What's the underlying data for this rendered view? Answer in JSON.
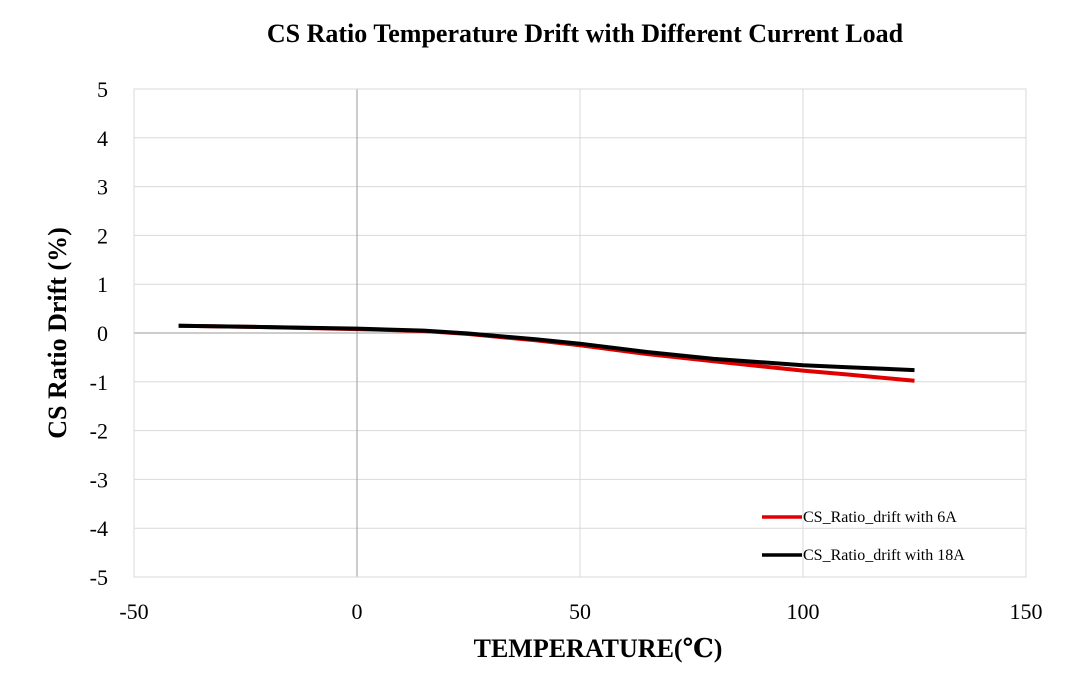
{
  "chart_data": {
    "type": "line",
    "title": "CS Ratio Temperature Drift with Different Current Load",
    "xlabel": "TEMPERATURE(℃)",
    "ylabel": "CS Ratio Drift (%)",
    "xlim": [
      -50,
      150
    ],
    "ylim": [
      -5,
      5
    ],
    "xticks": [
      -50,
      0,
      50,
      100,
      150
    ],
    "yticks": [
      -5,
      -4,
      -3,
      -2,
      -1,
      0,
      1,
      2,
      3,
      4,
      5
    ],
    "grid": true,
    "legend_position": "bottom-right",
    "series": [
      {
        "name": "CS_Ratio_drift with 6A",
        "color": "#e00000",
        "x": [
          -40,
          -25,
          0,
          15,
          25,
          40,
          50,
          65,
          80,
          100,
          110,
          125
        ],
        "y": [
          0.15,
          0.13,
          0.08,
          0.04,
          -0.02,
          -0.15,
          -0.25,
          -0.43,
          -0.58,
          -0.77,
          -0.85,
          -0.98
        ]
      },
      {
        "name": "CS_Ratio_drift with 18A",
        "color": "#000000",
        "x": [
          -40,
          -25,
          0,
          15,
          25,
          40,
          50,
          65,
          80,
          100,
          110,
          125
        ],
        "y": [
          0.15,
          0.13,
          0.09,
          0.05,
          -0.01,
          -0.13,
          -0.22,
          -0.39,
          -0.53,
          -0.66,
          -0.7,
          -0.76
        ]
      }
    ]
  }
}
